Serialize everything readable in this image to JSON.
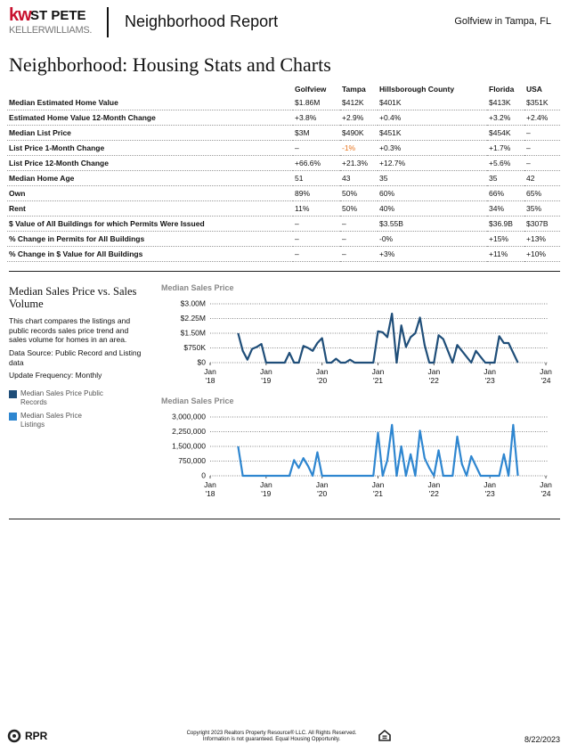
{
  "header": {
    "logo_kw": "kw",
    "logo_city": "ST PETE",
    "logo_brand": "KELLERWILLIAMS.",
    "title": "Neighborhood Report",
    "location": "Golfview in Tampa, FL"
  },
  "section_title": "Neighborhood: Housing Stats and Charts",
  "table": {
    "columns": [
      "Golfview",
      "Tampa",
      "Hillsborough County",
      "Florida",
      "USA"
    ],
    "rows": [
      {
        "label": "Median Estimated Home Value",
        "cells": [
          "$1.86M",
          "$412K",
          "$401K",
          "$413K",
          "$351K"
        ]
      },
      {
        "label": "Estimated Home Value 12-Month Change",
        "cells": [
          "+3.8%",
          "+2.9%",
          "+0.4%",
          "+3.2%",
          "+2.4%"
        ]
      },
      {
        "label": "Median List Price",
        "cells": [
          "$3M",
          "$490K",
          "$451K",
          "$454K",
          "–"
        ]
      },
      {
        "label": "List Price 1-Month Change",
        "cells": [
          "–",
          "-1%",
          "+0.3%",
          "+1.7%",
          "–"
        ]
      },
      {
        "label": "List Price 12-Month Change",
        "cells": [
          "+66.6%",
          "+21.3%",
          "+12.7%",
          "+5.6%",
          "–"
        ]
      },
      {
        "label": "Median Home Age",
        "cells": [
          "51",
          "43",
          "35",
          "35",
          "42"
        ]
      },
      {
        "label": "Own",
        "cells": [
          "89%",
          "50%",
          "60%",
          "66%",
          "65%"
        ]
      },
      {
        "label": "Rent",
        "cells": [
          "11%",
          "50%",
          "40%",
          "34%",
          "35%"
        ]
      },
      {
        "label": "$ Value of All Buildings for which Permits Were Issued",
        "cells": [
          "–",
          "–",
          "$3.55B",
          "$36.9B",
          "$307B"
        ]
      },
      {
        "label": "% Change in Permits for All Buildings",
        "cells": [
          "–",
          "–",
          "-0%",
          "+15%",
          "+13%"
        ]
      },
      {
        "label": "% Change in $ Value for All Buildings",
        "cells": [
          "–",
          "–",
          "+3%",
          "+11%",
          "+10%"
        ]
      }
    ]
  },
  "chart_panel": {
    "title": "Median Sales Price vs. Sales Volume",
    "description": "This chart compares the listings and public records sales price trend and sales volume for homes in an area.",
    "source": "Data Source: Public Record and Listing data",
    "frequency": "Update Frequency: Monthly"
  },
  "chart_data": [
    {
      "type": "line",
      "title": "Median Sales Price",
      "x": [
        "2018-07",
        "2018-08",
        "2018-09",
        "2018-10",
        "2018-11",
        "2018-12",
        "2019-01",
        "2019-02",
        "2019-03",
        "2019-04",
        "2019-05",
        "2019-06",
        "2019-07",
        "2019-08",
        "2019-09",
        "2019-10",
        "2019-11",
        "2019-12",
        "2020-01",
        "2020-02",
        "2020-03",
        "2020-04",
        "2020-05",
        "2020-06",
        "2020-07",
        "2020-08",
        "2020-09",
        "2020-10",
        "2020-11",
        "2020-12",
        "2021-01",
        "2021-02",
        "2021-03",
        "2021-04",
        "2021-05",
        "2021-06",
        "2021-07",
        "2021-08",
        "2021-09",
        "2021-10",
        "2021-11",
        "2021-12",
        "2022-01",
        "2022-02",
        "2022-03",
        "2022-04",
        "2022-05",
        "2022-06",
        "2022-07",
        "2022-08",
        "2022-09",
        "2022-10",
        "2022-11",
        "2022-12",
        "2023-01",
        "2023-02",
        "2023-03",
        "2023-04",
        "2023-05",
        "2023-06",
        "2023-07"
      ],
      "series": [
        {
          "name": "Median Sales Price Public Records",
          "color": "#1f4e79",
          "values": [
            1500000,
            600000,
            150000,
            700000,
            800000,
            950000,
            0,
            0,
            0,
            0,
            0,
            500000,
            0,
            0,
            850000,
            750000,
            600000,
            1000000,
            1250000,
            0,
            0,
            200000,
            0,
            0,
            150000,
            0,
            0,
            0,
            0,
            0,
            1600000,
            1550000,
            1300000,
            2500000,
            0,
            1900000,
            800000,
            1300000,
            1500000,
            2300000,
            900000,
            0,
            0,
            1400000,
            1200000,
            600000,
            0,
            900000,
            600000,
            300000,
            0,
            600000,
            300000,
            0,
            0,
            0,
            1350000,
            1000000,
            1000000,
            500000,
            0
          ]
        }
      ],
      "xlim": [
        "2018-01",
        "2024-01"
      ],
      "xticks": [
        {
          "value": "2018-01",
          "label": "Jan\n'18"
        },
        {
          "value": "2019-01",
          "label": "Jan\n'19"
        },
        {
          "value": "2020-01",
          "label": "Jan\n'20"
        },
        {
          "value": "2021-01",
          "label": "Jan\n'21"
        },
        {
          "value": "2022-01",
          "label": "Jan\n'22"
        },
        {
          "value": "2023-01",
          "label": "Jan\n'23"
        },
        {
          "value": "2024-01",
          "label": "Jan\n'24"
        }
      ],
      "ylim": [
        0,
        3000000
      ],
      "yticks": [
        {
          "value": 0,
          "label": "$0"
        },
        {
          "value": 750000,
          "label": "$750K"
        },
        {
          "value": 1500000,
          "label": "$1.50M"
        },
        {
          "value": 2250000,
          "label": "$2.25M"
        },
        {
          "value": 3000000,
          "label": "$3.00M"
        }
      ],
      "grid": true
    },
    {
      "type": "line",
      "title": "Median Sales Price",
      "x": [
        "2018-07",
        "2018-08",
        "2018-09",
        "2018-10",
        "2018-11",
        "2018-12",
        "2019-01",
        "2019-02",
        "2019-03",
        "2019-04",
        "2019-05",
        "2019-06",
        "2019-07",
        "2019-08",
        "2019-09",
        "2019-10",
        "2019-11",
        "2019-12",
        "2020-01",
        "2020-02",
        "2020-03",
        "2020-04",
        "2020-05",
        "2020-06",
        "2020-07",
        "2020-08",
        "2020-09",
        "2020-10",
        "2020-11",
        "2020-12",
        "2021-01",
        "2021-02",
        "2021-03",
        "2021-04",
        "2021-05",
        "2021-06",
        "2021-07",
        "2021-08",
        "2021-09",
        "2021-10",
        "2021-11",
        "2021-12",
        "2022-01",
        "2022-02",
        "2022-03",
        "2022-04",
        "2022-05",
        "2022-06",
        "2022-07",
        "2022-08",
        "2022-09",
        "2022-10",
        "2022-11",
        "2022-12",
        "2023-01",
        "2023-02",
        "2023-03",
        "2023-04",
        "2023-05",
        "2023-06",
        "2023-07"
      ],
      "series": [
        {
          "name": "Median Sales Price Listings",
          "color": "#2e86d0",
          "values": [
            1500000,
            0,
            0,
            0,
            0,
            0,
            0,
            0,
            0,
            0,
            0,
            0,
            800000,
            400000,
            900000,
            500000,
            0,
            1200000,
            0,
            0,
            0,
            0,
            0,
            0,
            0,
            0,
            0,
            0,
            0,
            0,
            2200000,
            0,
            800000,
            2600000,
            0,
            1500000,
            0,
            1100000,
            0,
            2300000,
            900000,
            400000,
            0,
            1300000,
            0,
            0,
            0,
            2000000,
            600000,
            0,
            1000000,
            500000,
            0,
            0,
            0,
            0,
            0,
            1100000,
            0,
            2600000,
            0
          ]
        }
      ],
      "xlim": [
        "2018-01",
        "2024-01"
      ],
      "xticks": [
        {
          "value": "2018-01",
          "label": "Jan\n'18"
        },
        {
          "value": "2019-01",
          "label": "Jan\n'19"
        },
        {
          "value": "2020-01",
          "label": "Jan\n'20"
        },
        {
          "value": "2021-01",
          "label": "Jan\n'21"
        },
        {
          "value": "2022-01",
          "label": "Jan\n'22"
        },
        {
          "value": "2023-01",
          "label": "Jan\n'23"
        },
        {
          "value": "2024-01",
          "label": "Jan\n'24"
        }
      ],
      "ylim": [
        0,
        3000000
      ],
      "yticks": [
        0,
        {
          "value": 750000,
          "label": "750,000"
        },
        {
          "value": 1500000,
          "label": "1,500,000"
        },
        {
          "value": 2250000,
          "label": "2,250,000"
        },
        {
          "value": 3000000,
          "label": "3,000,000"
        }
      ],
      "grid": true
    }
  ],
  "footer": {
    "brand": "RPR",
    "copyright": "Copyright 2023 Realtors Property Resource® LLC. All Rights Reserved.",
    "notice": "Information is not guaranteed. Equal Housing Opportunity.",
    "date": "8/22/2023"
  }
}
